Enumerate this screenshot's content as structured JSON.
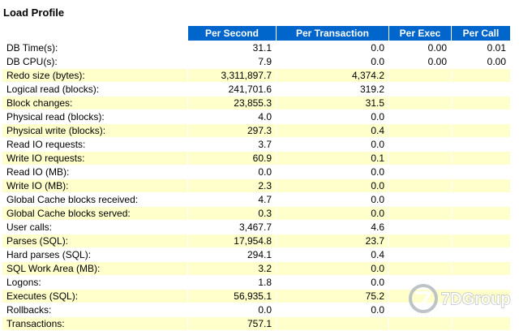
{
  "title": "Load Profile",
  "watermark": "7DGroup",
  "colors": {
    "header_bg": "#0066cc",
    "row_highlight": "#ffffcc",
    "header_text": "#ffffff"
  },
  "table": {
    "columns": [
      "Per Second",
      "Per Transaction",
      "Per Exec",
      "Per Call"
    ],
    "rows": [
      {
        "label": "DB Time(s):",
        "per_second": "31.1",
        "per_transaction": "0.0",
        "per_exec": "0.00",
        "per_call": "0.01",
        "highlight": false
      },
      {
        "label": "DB CPU(s):",
        "per_second": "7.9",
        "per_transaction": "0.0",
        "per_exec": "0.00",
        "per_call": "0.00",
        "highlight": false
      },
      {
        "label": "Redo size (bytes):",
        "per_second": "3,311,897.7",
        "per_transaction": "4,374.2",
        "per_exec": "",
        "per_call": "",
        "highlight": true
      },
      {
        "label": "Logical read (blocks):",
        "per_second": "241,701.6",
        "per_transaction": "319.2",
        "per_exec": "",
        "per_call": "",
        "highlight": false
      },
      {
        "label": "Block changes:",
        "per_second": "23,855.3",
        "per_transaction": "31.5",
        "per_exec": "",
        "per_call": "",
        "highlight": true
      },
      {
        "label": "Physical read (blocks):",
        "per_second": "4.0",
        "per_transaction": "0.0",
        "per_exec": "",
        "per_call": "",
        "highlight": false
      },
      {
        "label": "Physical write (blocks):",
        "per_second": "297.3",
        "per_transaction": "0.4",
        "per_exec": "",
        "per_call": "",
        "highlight": true
      },
      {
        "label": "Read IO requests:",
        "per_second": "3.7",
        "per_transaction": "0.0",
        "per_exec": "",
        "per_call": "",
        "highlight": false
      },
      {
        "label": "Write IO requests:",
        "per_second": "60.9",
        "per_transaction": "0.1",
        "per_exec": "",
        "per_call": "",
        "highlight": true
      },
      {
        "label": "Read IO (MB):",
        "per_second": "0.0",
        "per_transaction": "0.0",
        "per_exec": "",
        "per_call": "",
        "highlight": false
      },
      {
        "label": "Write IO (MB):",
        "per_second": "2.3",
        "per_transaction": "0.0",
        "per_exec": "",
        "per_call": "",
        "highlight": true
      },
      {
        "label": "Global Cache blocks received:",
        "per_second": "4.7",
        "per_transaction": "0.0",
        "per_exec": "",
        "per_call": "",
        "highlight": false
      },
      {
        "label": "Global Cache blocks served:",
        "per_second": "0.3",
        "per_transaction": "0.0",
        "per_exec": "",
        "per_call": "",
        "highlight": true
      },
      {
        "label": "User calls:",
        "per_second": "3,467.7",
        "per_transaction": "4.6",
        "per_exec": "",
        "per_call": "",
        "highlight": false
      },
      {
        "label": "Parses (SQL):",
        "per_second": "17,954.8",
        "per_transaction": "23.7",
        "per_exec": "",
        "per_call": "",
        "highlight": true
      },
      {
        "label": "Hard parses (SQL):",
        "per_second": "294.1",
        "per_transaction": "0.4",
        "per_exec": "",
        "per_call": "",
        "highlight": false
      },
      {
        "label": "SQL Work Area (MB):",
        "per_second": "3.2",
        "per_transaction": "0.0",
        "per_exec": "",
        "per_call": "",
        "highlight": true
      },
      {
        "label": "Logons:",
        "per_second": "1.8",
        "per_transaction": "0.0",
        "per_exec": "",
        "per_call": "",
        "highlight": false
      },
      {
        "label": "Executes (SQL):",
        "per_second": "56,935.1",
        "per_transaction": "75.2",
        "per_exec": "",
        "per_call": "",
        "highlight": true
      },
      {
        "label": "Rollbacks:",
        "per_second": "0.0",
        "per_transaction": "0.0",
        "per_exec": "",
        "per_call": "",
        "highlight": false
      },
      {
        "label": "Transactions:",
        "per_second": "757.1",
        "per_transaction": "",
        "per_exec": "",
        "per_call": "",
        "highlight": true
      }
    ]
  }
}
